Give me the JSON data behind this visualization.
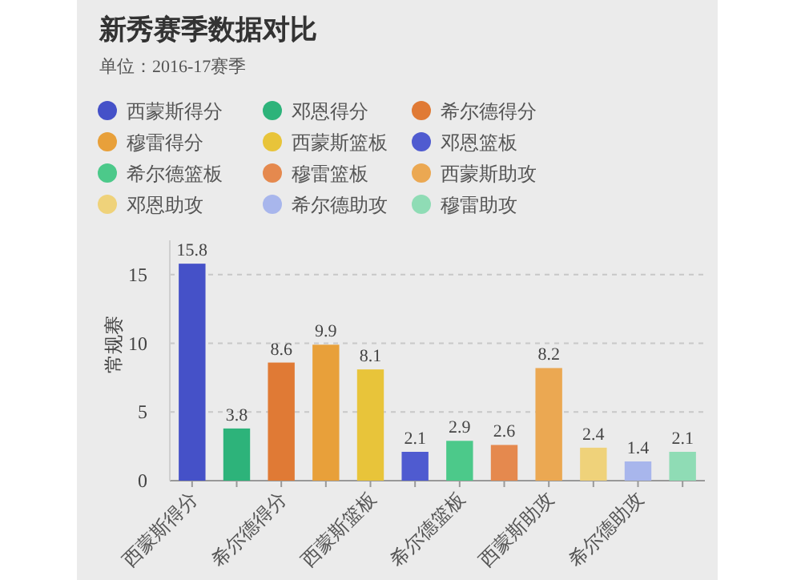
{
  "chart_data": {
    "type": "bar",
    "title": "新秀赛季数据对比",
    "subtitle": "单位：2016-17赛季",
    "ylabel": "常规赛",
    "categories": [
      "西蒙斯得分",
      null,
      "希尔德得分",
      null,
      "西蒙斯篮板",
      null,
      "希尔德篮板",
      null,
      "西蒙斯助攻",
      null,
      "希尔德助攻",
      null
    ],
    "series": [
      {
        "name": "西蒙斯得分",
        "color": "#4551c8",
        "values": [
          15.8,
          null,
          null,
          null,
          null,
          null,
          null,
          null,
          null,
          null,
          null,
          null
        ]
      },
      {
        "name": "邓恩得分",
        "color": "#2db37a",
        "values": [
          null,
          3.8,
          null,
          null,
          null,
          null,
          null,
          null,
          null,
          null,
          null,
          null
        ]
      },
      {
        "name": "希尔德得分",
        "color": "#e07a35",
        "values": [
          null,
          null,
          8.6,
          null,
          null,
          null,
          null,
          null,
          null,
          null,
          null,
          null
        ]
      },
      {
        "name": "穆雷得分",
        "color": "#e8a03a",
        "values": [
          null,
          null,
          null,
          9.9,
          null,
          null,
          null,
          null,
          null,
          null,
          null,
          null
        ]
      },
      {
        "name": "西蒙斯篮板",
        "color": "#e8c43a",
        "values": [
          null,
          null,
          null,
          null,
          8.1,
          null,
          null,
          null,
          null,
          null,
          null,
          null
        ]
      },
      {
        "name": "邓恩篮板",
        "color": "#4f5bd0",
        "values": [
          null,
          null,
          null,
          null,
          null,
          2.1,
          null,
          null,
          null,
          null,
          null,
          null
        ]
      },
      {
        "name": "希尔德篮板",
        "color": "#4cc98a",
        "values": [
          null,
          null,
          null,
          null,
          null,
          null,
          2.9,
          null,
          null,
          null,
          null,
          null
        ]
      },
      {
        "name": "穆雷篮板",
        "color": "#e5894e",
        "values": [
          null,
          null,
          null,
          null,
          null,
          null,
          null,
          2.6,
          null,
          null,
          null,
          null
        ]
      },
      {
        "name": "西蒙斯助攻",
        "color": "#eba852",
        "values": [
          null,
          null,
          null,
          null,
          null,
          null,
          null,
          null,
          8.2,
          null,
          null,
          null
        ]
      },
      {
        "name": "邓恩助攻",
        "color": "#efd27a",
        "values": [
          null,
          null,
          null,
          null,
          null,
          null,
          null,
          null,
          null,
          2.4,
          null,
          null
        ]
      },
      {
        "name": "希尔德助攻",
        "color": "#a8b6ec",
        "values": [
          null,
          null,
          null,
          null,
          null,
          null,
          null,
          null,
          null,
          null,
          1.4,
          null
        ]
      },
      {
        "name": "穆雷助攻",
        "color": "#8fdcb5",
        "values": [
          null,
          null,
          null,
          null,
          null,
          null,
          null,
          null,
          null,
          null,
          null,
          2.1
        ]
      }
    ],
    "ylim": [
      0,
      17.5
    ],
    "yticks": [
      0,
      5,
      10,
      15
    ],
    "grid": "y",
    "line_style": "dashed",
    "legend": "top",
    "data_labels": true
  }
}
